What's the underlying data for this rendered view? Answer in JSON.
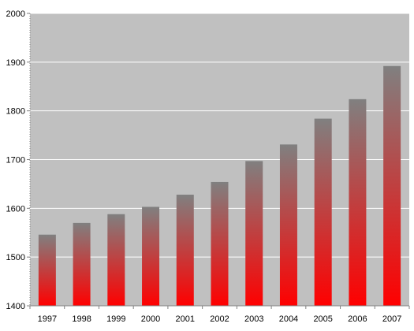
{
  "chart_data": {
    "type": "bar",
    "categories": [
      "1997",
      "1998",
      "1999",
      "2000",
      "2001",
      "2002",
      "2003",
      "2004",
      "2005",
      "2006",
      "2007"
    ],
    "values": [
      1546,
      1570,
      1588,
      1603,
      1628,
      1654,
      1697,
      1731,
      1784,
      1824,
      1892
    ],
    "title": "",
    "xlabel": "",
    "ylabel": "",
    "ylim": [
      1400,
      2000
    ],
    "yticks": [
      "1400",
      "1500",
      "1600",
      "1700",
      "1800",
      "1900",
      "2000"
    ],
    "grid": true,
    "legend": "none",
    "colors": {
      "plot_background": "#c0c0c0",
      "gridline": "#ffffff",
      "bar_top": "#808080",
      "bar_bottom": "#ff0000",
      "axis": "#808080"
    }
  }
}
